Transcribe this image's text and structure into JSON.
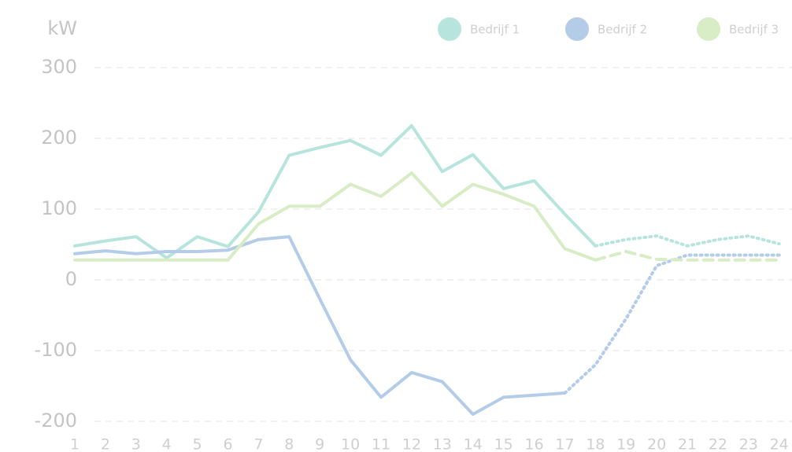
{
  "chart_data": {
    "type": "line",
    "y_unit": "kW",
    "categories": [
      "1",
      "2",
      "3",
      "4",
      "5",
      "6",
      "7",
      "8",
      "9",
      "10",
      "11",
      "12",
      "13",
      "14",
      "15",
      "16",
      "17",
      "18",
      "19",
      "20",
      "21",
      "22",
      "23",
      "24"
    ],
    "series": [
      {
        "name": "Bedrijf 1",
        "color": "#b7e5dd",
        "forecast_from_index": 17,
        "forecast_style": "dotted",
        "values": [
          48,
          55,
          61,
          31,
          61,
          47,
          96,
          176,
          187,
          197,
          176,
          218,
          153,
          177,
          129,
          140,
          93,
          48,
          57,
          62,
          48,
          57,
          62,
          51
        ]
      },
      {
        "name": "Bedrijf 2",
        "color": "#b4cce8",
        "forecast_from_index": 16,
        "forecast_style": "dotted",
        "values": [
          37,
          41,
          37,
          40,
          40,
          42,
          57,
          61,
          -27,
          -113,
          -166,
          -131,
          -144,
          -190,
          -166,
          -163,
          -160,
          -120,
          -55,
          20,
          35,
          35,
          35,
          35
        ]
      },
      {
        "name": "Bedrijf 3",
        "color": "#d8ecc6",
        "forecast_from_index": 17,
        "forecast_style": "dashed",
        "values": [
          28,
          28,
          28,
          28,
          28,
          28,
          79,
          104,
          104,
          135,
          118,
          151,
          104,
          135,
          121,
          104,
          44,
          28,
          40,
          29,
          28,
          28,
          28,
          28
        ]
      }
    ],
    "ylim": [
      -200,
      300
    ],
    "yticks": [
      -200,
      -100,
      0,
      100,
      200,
      300
    ],
    "grid": true,
    "legend": "top-right"
  }
}
